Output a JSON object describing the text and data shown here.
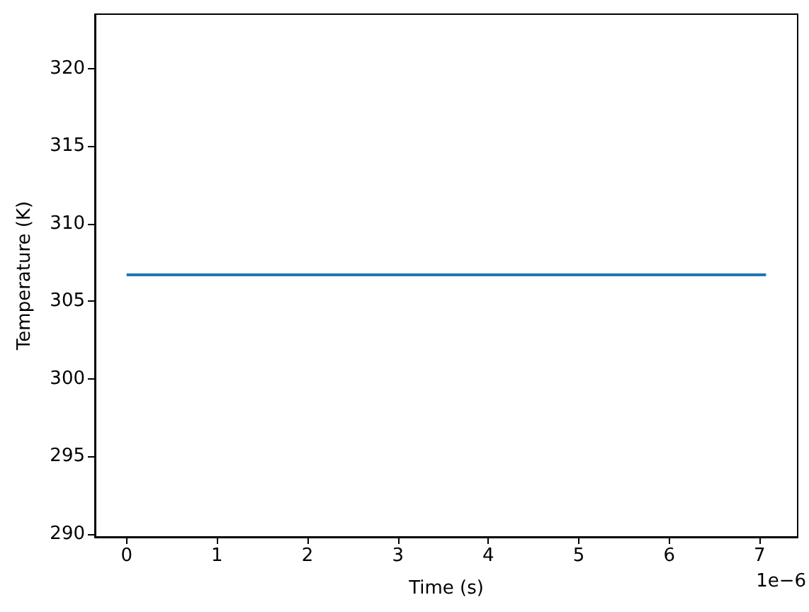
{
  "chart_data": {
    "type": "line",
    "xlabel": "Time (s)",
    "ylabel": "Temperature (K)",
    "x": [
      0,
      7.07
    ],
    "series": [
      {
        "color": "#1f77b4",
        "values": [
          306.7,
          306.7
        ]
      }
    ],
    "xlim": [
      -0.35,
      7.42
    ],
    "xticks": [
      0,
      1,
      2,
      3,
      4,
      5,
      6,
      7
    ],
    "ylim": [
      289.8,
      323.5
    ],
    "yticks": [
      290,
      295,
      300,
      305,
      310,
      315,
      320
    ],
    "annotations": [
      "1e−6"
    ],
    "grid": false,
    "marker": "none",
    "line_style": "solid"
  }
}
